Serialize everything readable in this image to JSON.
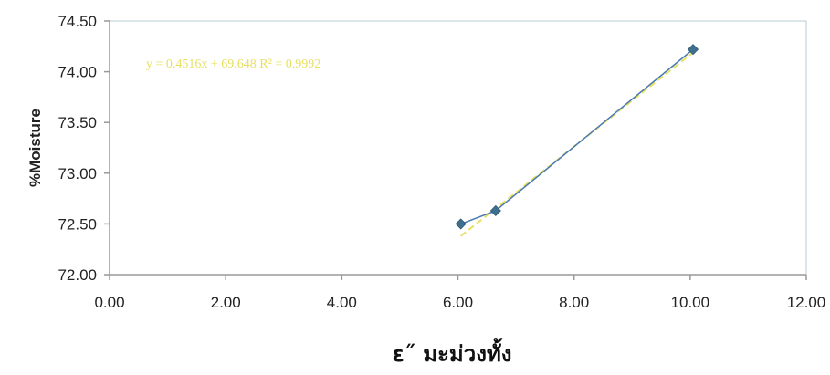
{
  "chart_data": {
    "type": "line",
    "title": "",
    "xlabel": "ε˝ มะม่วงทั้ง",
    "ylabel": "%Moisture",
    "xlim": [
      0,
      12
    ],
    "ylim": [
      72,
      74.5
    ],
    "x_ticks": [
      "0.00",
      "2.00",
      "4.00",
      "6.00",
      "8.00",
      "10.00",
      "12.00"
    ],
    "y_ticks": [
      "72.00",
      "72.50",
      "73.00",
      "73.50",
      "74.00",
      "74.50"
    ],
    "grid": false,
    "series": [
      {
        "x": [
          6.05,
          6.65,
          10.05
        ],
        "y": [
          72.5,
          72.63,
          74.22
        ]
      }
    ],
    "trendline": {
      "equation": "y = 0.4516x + 69.648  R² = 0.9992",
      "x": [
        6.05,
        10.05
      ],
      "y": [
        72.38,
        74.19
      ]
    },
    "colors": {
      "series": "#4a7ab0",
      "marker": "#3f6f8f",
      "trendline": "#e8e060",
      "axis": "#999999"
    }
  }
}
